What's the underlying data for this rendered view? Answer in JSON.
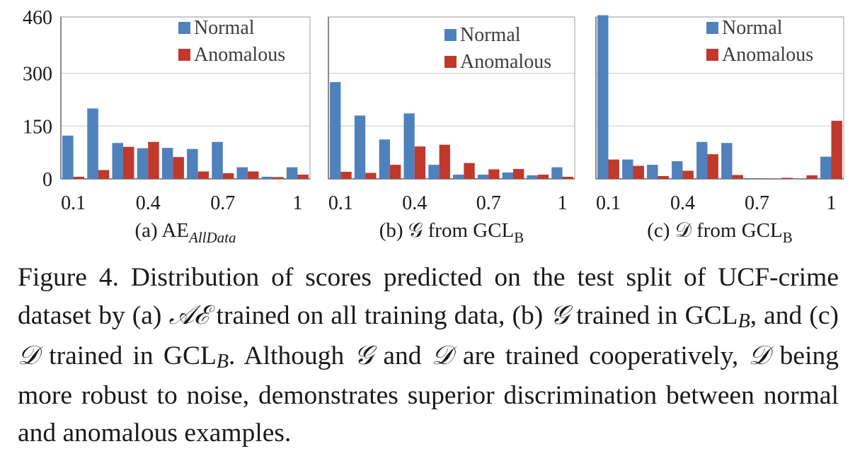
{
  "chart_data": [
    {
      "type": "bar",
      "panel_label": "(a) AE",
      "panel_label_sub": "AllData",
      "x_tick_labels": [
        "0.1",
        "0.4",
        "0.7",
        "1"
      ],
      "categories": [
        "0.1",
        "0.2",
        "0.3",
        "0.4",
        "0.5",
        "0.6",
        "0.7",
        "0.8",
        "0.9",
        "1"
      ],
      "y_ticks": [
        "0",
        "150",
        "300",
        "460"
      ],
      "ylim": [
        0,
        460
      ],
      "grid": true,
      "legend_position": "top-right",
      "series": [
        {
          "name": "Normal",
          "color": "#4f81bd",
          "values": [
            123,
            200,
            102,
            87,
            88,
            85,
            105,
            33,
            6,
            33
          ]
        },
        {
          "name": "Anomalous",
          "color": "#c0392b",
          "values": [
            6,
            25,
            91,
            105,
            62,
            21,
            16,
            21,
            5,
            12
          ]
        }
      ]
    },
    {
      "type": "bar",
      "panel_label": "(b) 𝒢 from GCL",
      "panel_label_sub": "B",
      "x_tick_labels": [
        "0.1",
        "0.4",
        "0.7",
        "1"
      ],
      "categories": [
        "0.1",
        "0.2",
        "0.3",
        "0.4",
        "0.5",
        "0.6",
        "0.7",
        "0.8",
        "0.9",
        "1"
      ],
      "y_ticks": [],
      "ylim": [
        0,
        460
      ],
      "grid": true,
      "legend_position": "top-right",
      "series": [
        {
          "name": "Normal",
          "color": "#4f81bd",
          "values": [
            275,
            180,
            112,
            186,
            40,
            12,
            12,
            18,
            10,
            33
          ]
        },
        {
          "name": "Anomalous",
          "color": "#c0392b",
          "values": [
            20,
            17,
            40,
            92,
            97,
            45,
            27,
            28,
            12,
            6
          ]
        }
      ]
    },
    {
      "type": "bar",
      "panel_label": "(c) 𝒟 from GCL",
      "panel_label_sub": "B",
      "x_tick_labels": [
        "0.1",
        "0.4",
        "0.7",
        "1"
      ],
      "categories": [
        "0.1",
        "0.2",
        "0.3",
        "0.4",
        "0.5",
        "0.6",
        "0.7",
        "0.8",
        "0.9",
        "1"
      ],
      "y_ticks": [],
      "ylim": [
        0,
        460
      ],
      "grid": true,
      "legend_position": "top-right",
      "series": [
        {
          "name": "Normal",
          "color": "#4f81bd",
          "values": [
            465,
            55,
            40,
            50,
            105,
            102,
            2,
            0,
            0,
            63
          ]
        },
        {
          "name": "Anomalous",
          "color": "#c0392b",
          "values": [
            55,
            37,
            8,
            23,
            70,
            11,
            1,
            3,
            10,
            165
          ]
        }
      ]
    }
  ],
  "caption": {
    "prefix": "Figure 4. Distribution of scores predicted on the test split of UCF-crime dataset by (a) ",
    "ae": "𝒜ℰ",
    "part2": " trained on all training data, (b) ",
    "g1": "𝒢",
    "part3": " trained in GCL",
    "sub1": "B",
    "part4": ", and (c) ",
    "d1": "𝒟",
    "part5": " trained in GCL",
    "sub2": "B",
    "part6": ".  Although ",
    "g2": "𝒢",
    "part7": " and ",
    "d2": "𝒟",
    "part8": " are trained cooperatively, ",
    "d3": "𝒟",
    "part9": " being more robust to noise, demonstrates superior discrimination between normal and anomalous examples."
  }
}
